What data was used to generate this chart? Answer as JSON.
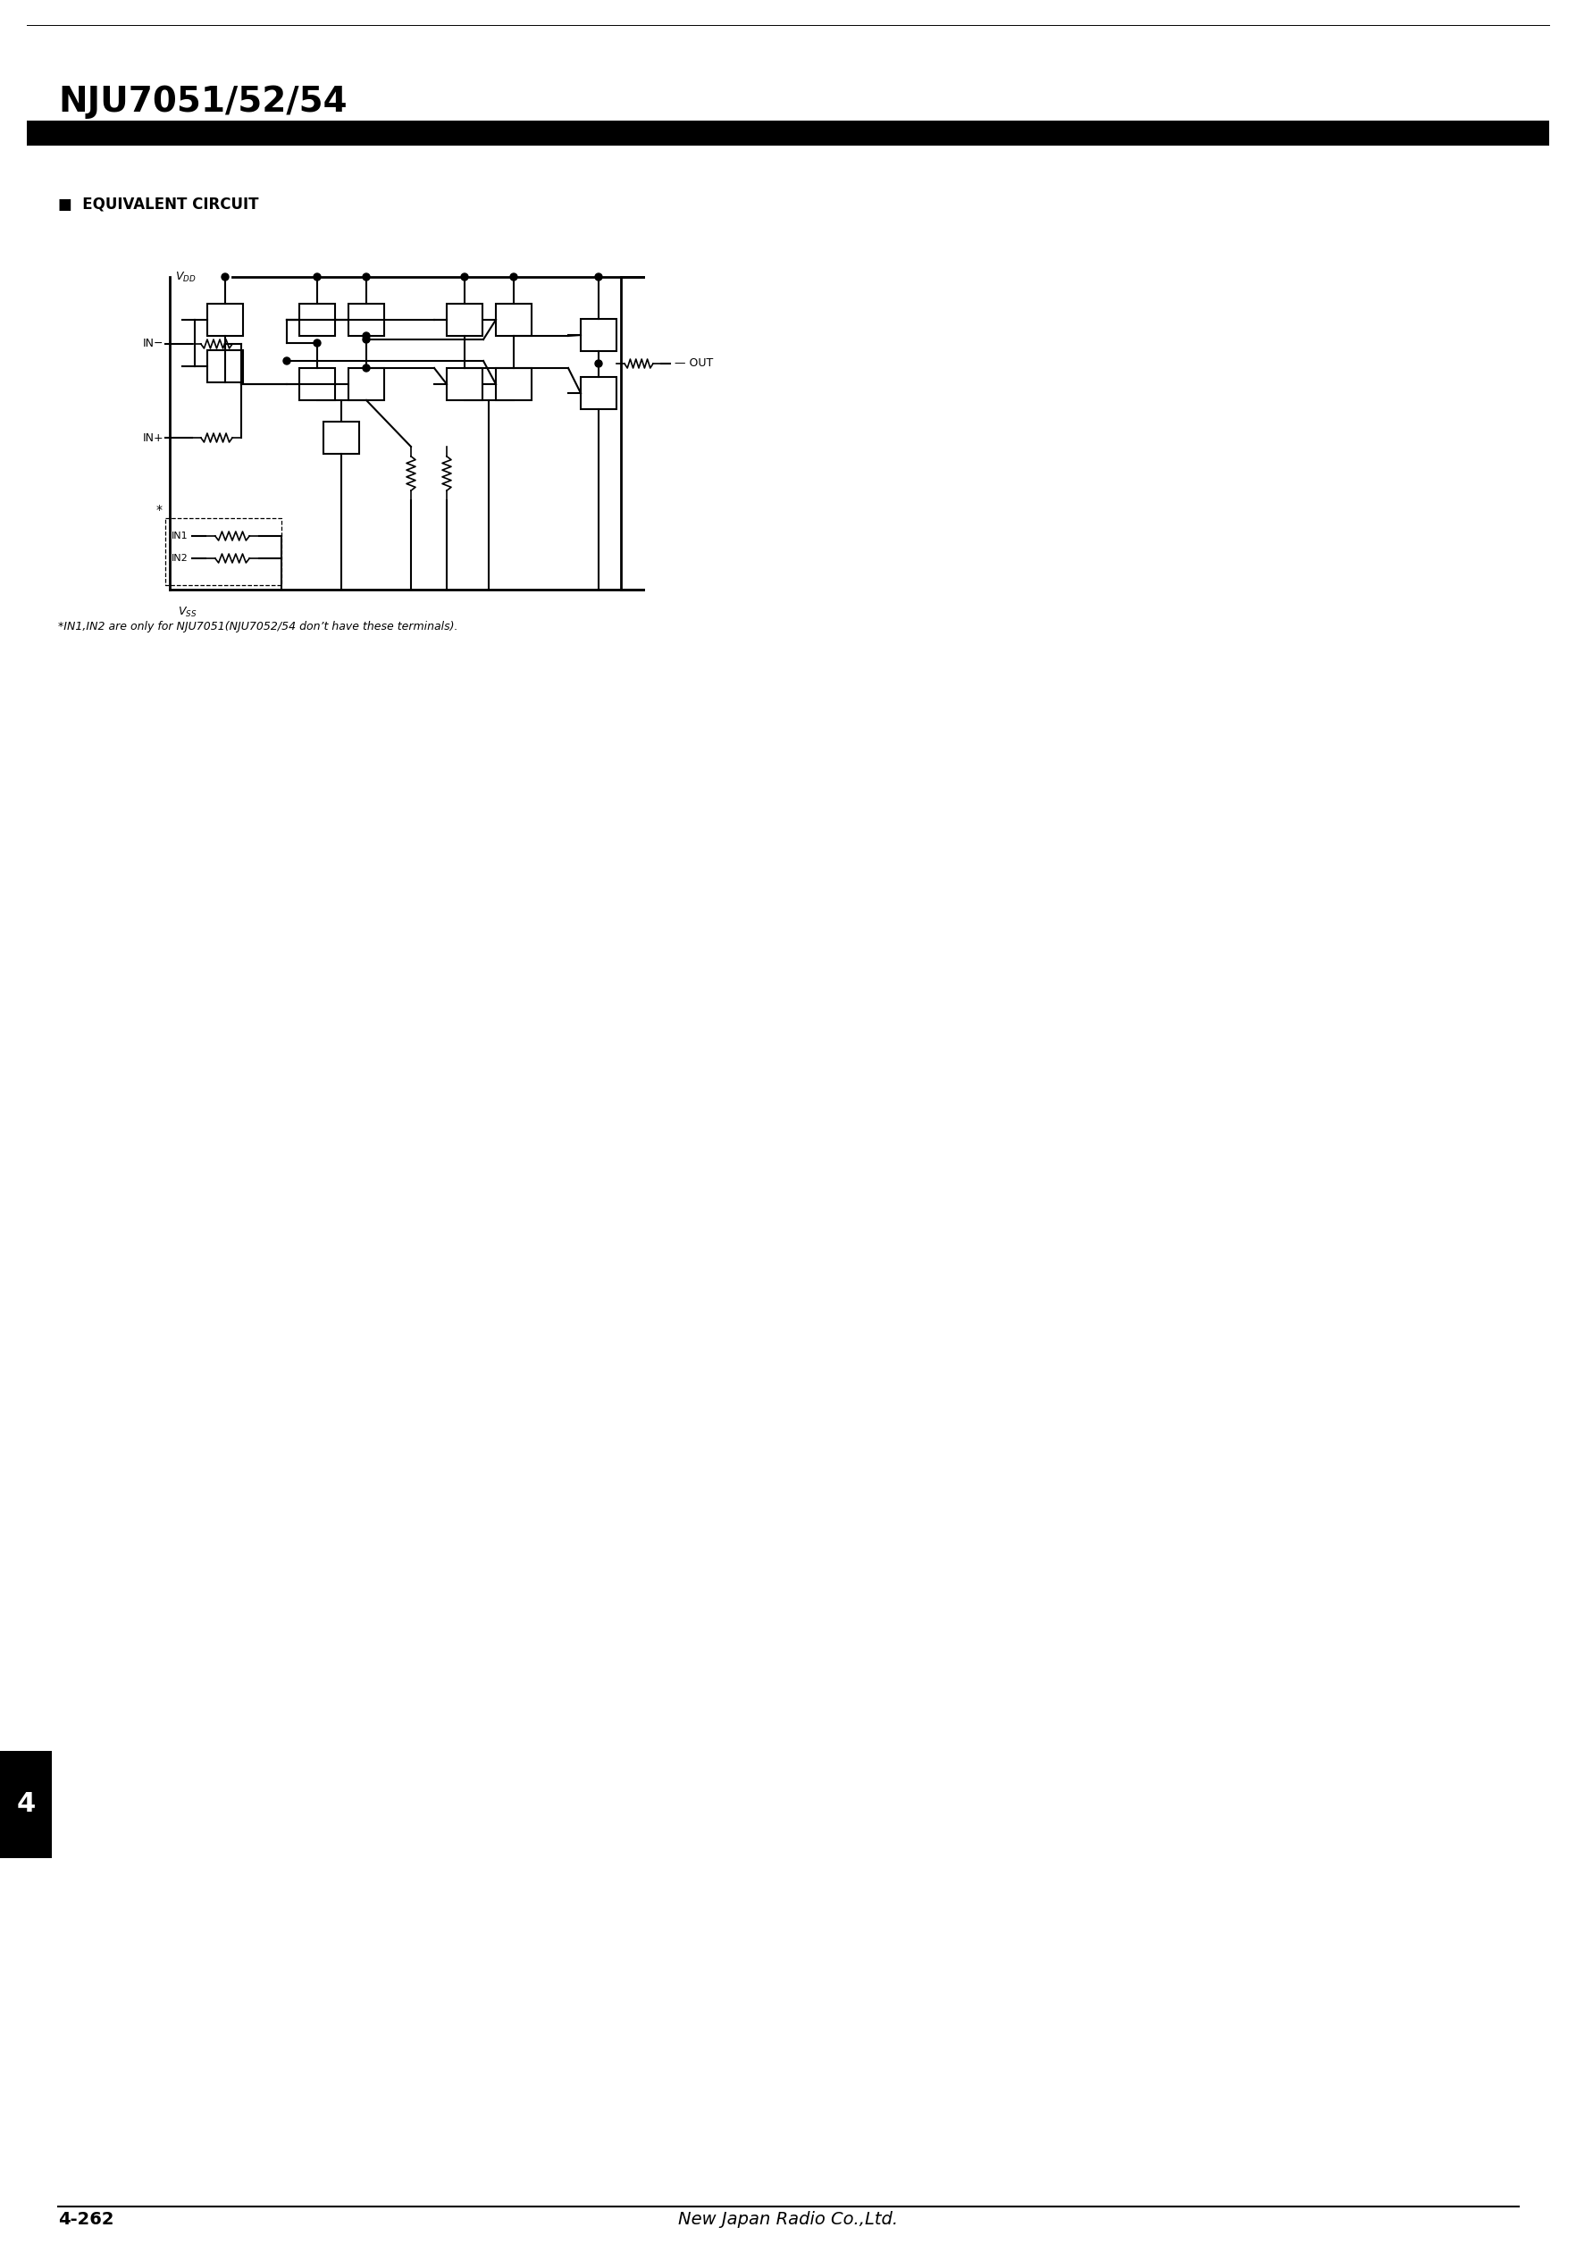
{
  "title": "NJU7051/52/54",
  "title_fontsize": 28,
  "header_bar_color": "#000000",
  "section_label": "■  EQUIVALENT CIRCUIT",
  "section_label_fontsize": 12,
  "footnote": "*IN1,IN2 are only for NJU7051(NJU7052/54 don’t have these terminals).",
  "footnote_fontsize": 9,
  "page_number": "4-262",
  "page_number_fontsize": 14,
  "company_name": "New Japan Radio Co.,Ltd.",
  "company_fontsize": 14,
  "side_number": "4",
  "side_number_fontsize": 22,
  "background_color": "#ffffff",
  "vdd_label": "V$_{DD}$",
  "vss_label": "V$_{SS}$",
  "in_neg_label": "IN−",
  "in_pos_label": "IN+",
  "out_label": "OUT",
  "in1_label": "IN1",
  "in2_label": "IN2"
}
